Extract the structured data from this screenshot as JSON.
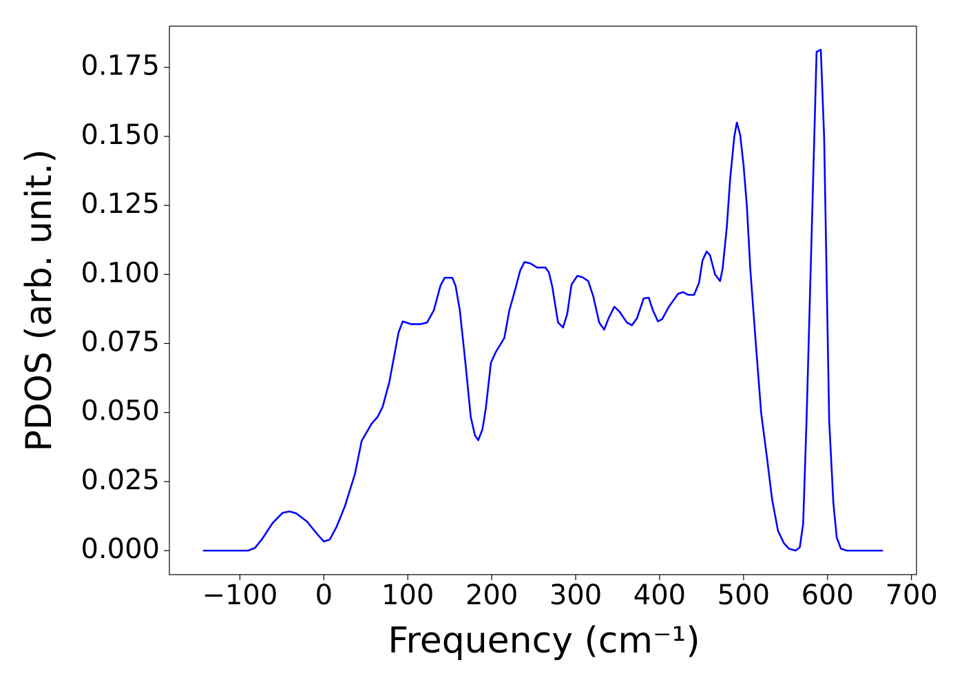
{
  "chart_data": {
    "type": "line",
    "xlabel": "Frequency (cm⁻¹)",
    "ylabel": "PDOS (arb. unit.)",
    "x": [
      -144,
      -90,
      -82,
      -74,
      -61,
      -49,
      -41,
      -33,
      -20,
      -8,
      0,
      7,
      15,
      25,
      37,
      45,
      57,
      64,
      70,
      78,
      89,
      94,
      104,
      115,
      123,
      131,
      139,
      144,
      153,
      157,
      162,
      169,
      175,
      180,
      184,
      189,
      193,
      199,
      205,
      215,
      221,
      228,
      234,
      239,
      246,
      254,
      264,
      268,
      272,
      279,
      285,
      290,
      295,
      302,
      308,
      315,
      321,
      328,
      334,
      339,
      346,
      352,
      361,
      367,
      373,
      381,
      387,
      392,
      398,
      403,
      411,
      422,
      428,
      434,
      441,
      447,
      451,
      456,
      460,
      466,
      472,
      475,
      480,
      484,
      489,
      492,
      496,
      500,
      504,
      508,
      515,
      521,
      528,
      534,
      541,
      548,
      554,
      562,
      567,
      571,
      575,
      582,
      587,
      592,
      596,
      602,
      607,
      611,
      616,
      623,
      666
    ],
    "series": [
      {
        "color": "#0000ff",
        "values": [
          0,
          0,
          0.001,
          0.004,
          0.01,
          0.0137,
          0.0142,
          0.0135,
          0.0105,
          0.006,
          0.0033,
          0.004,
          0.0085,
          0.016,
          0.0277,
          0.0397,
          0.046,
          0.0484,
          0.052,
          0.061,
          0.079,
          0.083,
          0.082,
          0.082,
          0.0826,
          0.087,
          0.096,
          0.0988,
          0.0988,
          0.0958,
          0.087,
          0.067,
          0.0484,
          0.0417,
          0.04,
          0.044,
          0.0516,
          0.068,
          0.072,
          0.077,
          0.087,
          0.0946,
          0.1015,
          0.1045,
          0.104,
          0.1025,
          0.1025,
          0.1008,
          0.0958,
          0.0826,
          0.0808,
          0.0858,
          0.0963,
          0.0995,
          0.099,
          0.0976,
          0.092,
          0.0826,
          0.08,
          0.084,
          0.0883,
          0.0866,
          0.0826,
          0.0816,
          0.0841,
          0.0913,
          0.0916,
          0.087,
          0.083,
          0.0838,
          0.0883,
          0.093,
          0.0936,
          0.0926,
          0.0926,
          0.097,
          0.105,
          0.1083,
          0.107,
          0.1,
          0.0976,
          0.102,
          0.117,
          0.1345,
          0.15,
          0.155,
          0.1505,
          0.1395,
          0.1245,
          0.102,
          0.0734,
          0.0497,
          0.0334,
          0.0185,
          0.0072,
          0.0027,
          0.0007,
          0,
          0.0012,
          0.0097,
          0.047,
          0.1245,
          0.1806,
          0.1814,
          0.1495,
          0.047,
          0.0172,
          0.0047,
          0.0007,
          0,
          0
        ]
      }
    ],
    "xlim": [
      -184,
      706
    ],
    "ylim": [
      -0.0087,
      0.1899
    ],
    "xticks": [
      {
        "value": -100,
        "label": "−100"
      },
      0,
      100,
      200,
      300,
      400,
      500,
      600,
      700
    ],
    "yticks": [
      {
        "value": 0,
        "label": "0.000"
      },
      {
        "value": 0.025,
        "label": "0.025"
      },
      {
        "value": 0.05,
        "label": "0.050"
      },
      {
        "value": 0.075,
        "label": "0.075"
      },
      {
        "value": 0.1,
        "label": "0.100"
      },
      {
        "value": 0.125,
        "label": "0.125"
      },
      {
        "value": 0.15,
        "label": "0.150"
      },
      {
        "value": 0.175,
        "label": "0.175"
      }
    ]
  }
}
